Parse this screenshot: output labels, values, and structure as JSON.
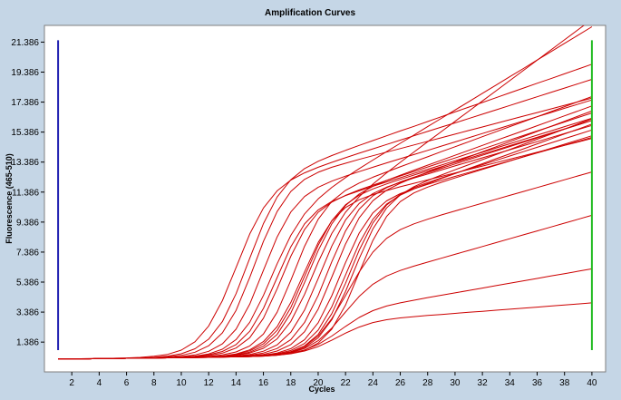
{
  "colors": {
    "background": "#c5d6e6",
    "plot_background": "#ffffff",
    "curve": "#cc0000",
    "left_cursor": "#1f1fb0",
    "right_cursor": "#22bb22"
  },
  "chart_data": {
    "type": "line",
    "title": "Amplification Curves",
    "xlabel": "Cycles",
    "ylabel": "Fluorescence (465-510)",
    "xlim": [
      0,
      41
    ],
    "ylim": [
      -0.6,
      22.5
    ],
    "x_ticks": [
      "2",
      "4",
      "6",
      "8",
      "10",
      "12",
      "14",
      "16",
      "18",
      "20",
      "22",
      "24",
      "26",
      "28",
      "30",
      "32",
      "34",
      "36",
      "38",
      "40"
    ],
    "y_ticks": [
      "1.386",
      "3.386",
      "5.386",
      "7.386",
      "9.386",
      "11.386",
      "13.386",
      "15.386",
      "17.386",
      "19.386",
      "21.386"
    ],
    "grid": false,
    "left_cursor_x": 1,
    "right_cursor_x": 40,
    "x": [
      1,
      2,
      3,
      4,
      5,
      6,
      7,
      8,
      9,
      10,
      11,
      12,
      13,
      14,
      15,
      16,
      17,
      18,
      19,
      20,
      21,
      22,
      23,
      24,
      25,
      26,
      27,
      28,
      29,
      30,
      31,
      32,
      33,
      34,
      35,
      36,
      37,
      38,
      39,
      40
    ],
    "series": [
      {
        "values": [
          0.25,
          0.26,
          0.28,
          0.3,
          0.31,
          0.33,
          0.37,
          0.44,
          0.57,
          0.85,
          1.41,
          2.46,
          4.15,
          6.36,
          8.6,
          10.33,
          11.47,
          12.19,
          12.67,
          13.04,
          13.37,
          13.68,
          13.98,
          14.27,
          14.56,
          14.85,
          15.14,
          15.43,
          15.72,
          16.0,
          16.29,
          16.58,
          16.87,
          17.16,
          17.45,
          17.74,
          18.03,
          18.32,
          18.61,
          18.9
        ]
      },
      {
        "values": [
          0.25,
          0.26,
          0.27,
          0.29,
          0.3,
          0.31,
          0.33,
          0.37,
          0.45,
          0.61,
          0.94,
          1.58,
          2.75,
          4.61,
          6.98,
          9.29,
          11.06,
          12.21,
          12.95,
          13.44,
          13.82,
          14.17,
          14.5,
          14.82,
          15.14,
          15.46,
          15.77,
          16.09,
          16.41,
          16.73,
          17.05,
          17.36,
          17.68,
          18.0,
          18.32,
          18.64,
          18.95,
          19.27,
          19.59,
          19.91
        ]
      },
      {
        "values": [
          0.25,
          0.26,
          0.27,
          0.28,
          0.3,
          0.31,
          0.32,
          0.35,
          0.4,
          0.5,
          0.71,
          1.14,
          2.0,
          3.5,
          5.7,
          8.1,
          10.09,
          11.43,
          12.23,
          12.71,
          13.04,
          13.31,
          13.57,
          13.81,
          14.05,
          14.29,
          14.53,
          14.77,
          15.01,
          15.25,
          15.49,
          15.73,
          15.97,
          16.21,
          16.45,
          16.69,
          16.93,
          17.17,
          17.41,
          17.65
        ]
      },
      {
        "values": [
          0.25,
          0.26,
          0.27,
          0.28,
          0.29,
          0.31,
          0.32,
          0.33,
          0.36,
          0.42,
          0.53,
          0.77,
          1.27,
          2.25,
          3.92,
          6.18,
          8.4,
          10.06,
          11.09,
          11.71,
          12.12,
          12.45,
          12.75,
          13.04,
          13.33,
          13.61,
          13.89,
          14.17,
          14.45,
          14.73,
          15.01,
          15.29,
          15.57,
          15.85,
          16.13,
          16.41,
          16.69,
          16.97,
          17.25,
          17.53
        ]
      },
      {
        "values": [
          0.25,
          0.26,
          0.27,
          0.28,
          0.29,
          0.31,
          0.32,
          0.33,
          0.35,
          0.38,
          0.43,
          0.54,
          0.76,
          1.22,
          2.11,
          3.63,
          5.69,
          7.74,
          9.26,
          10.2,
          10.76,
          11.15,
          11.47,
          11.77,
          12.06,
          12.34,
          12.63,
          12.91,
          13.19,
          13.48,
          13.76,
          14.04,
          14.33,
          14.61,
          14.9,
          15.18,
          15.46,
          15.75,
          16.03,
          16.31
        ]
      },
      {
        "values": [
          0.25,
          0.26,
          0.27,
          0.28,
          0.29,
          0.31,
          0.32,
          0.33,
          0.35,
          0.37,
          0.41,
          0.49,
          0.65,
          0.99,
          1.68,
          2.98,
          4.94,
          7.11,
          8.89,
          10.04,
          10.72,
          11.17,
          11.53,
          11.85,
          12.16,
          12.46,
          12.76,
          13.06,
          13.36,
          13.66,
          13.96,
          14.26,
          14.56,
          14.86,
          15.16,
          15.46,
          15.76,
          16.06,
          16.36,
          16.66
        ]
      },
      {
        "values": [
          0.25,
          0.26,
          0.27,
          0.28,
          0.29,
          0.31,
          0.32,
          0.33,
          0.34,
          0.36,
          0.38,
          0.43,
          0.53,
          0.73,
          1.13,
          1.93,
          3.38,
          5.5,
          7.77,
          9.58,
          10.77,
          11.5,
          11.99,
          12.38,
          12.73,
          13.07,
          13.41,
          13.74,
          14.08,
          14.41,
          14.74,
          15.08,
          15.41,
          15.75,
          16.08,
          16.41,
          16.75,
          17.08,
          17.42,
          17.75
        ]
      },
      {
        "values": [
          0.25,
          0.26,
          0.27,
          0.28,
          0.29,
          0.31,
          0.32,
          0.33,
          0.34,
          0.35,
          0.37,
          0.4,
          0.45,
          0.57,
          0.8,
          1.27,
          2.17,
          3.69,
          5.76,
          7.84,
          9.48,
          10.54,
          11.18,
          11.6,
          11.93,
          12.23,
          12.52,
          12.8,
          13.08,
          13.36,
          13.64,
          13.92,
          14.2,
          14.48,
          14.76,
          15.04,
          15.32,
          15.6,
          15.88,
          16.16
        ]
      },
      {
        "values": [
          0.25,
          0.26,
          0.27,
          0.28,
          0.29,
          0.31,
          0.32,
          0.33,
          0.34,
          0.35,
          0.37,
          0.39,
          0.44,
          0.53,
          0.72,
          1.11,
          1.9,
          3.32,
          5.35,
          7.49,
          9.27,
          10.49,
          11.26,
          11.77,
          12.16,
          12.51,
          12.85,
          13.18,
          13.51,
          13.84,
          14.17,
          14.5,
          14.83,
          15.15,
          15.48,
          15.81,
          16.14,
          16.47,
          16.8,
          17.13
        ]
      },
      {
        "values": [
          0.25,
          0.26,
          0.27,
          0.28,
          0.29,
          0.31,
          0.32,
          0.33,
          0.34,
          0.35,
          0.36,
          0.38,
          0.41,
          0.46,
          0.56,
          0.78,
          1.2,
          2.04,
          3.52,
          5.62,
          7.79,
          9.52,
          10.63,
          11.29,
          11.71,
          12.03,
          12.32,
          12.59,
          12.86,
          13.13,
          13.4,
          13.67,
          13.94,
          14.21,
          14.48,
          14.75,
          15.02,
          15.29,
          15.56,
          15.83
        ]
      },
      {
        "values": [
          0.25,
          0.26,
          0.27,
          0.28,
          0.29,
          0.31,
          0.32,
          0.33,
          0.34,
          0.35,
          0.36,
          0.38,
          0.4,
          0.44,
          0.51,
          0.66,
          0.96,
          1.55,
          2.69,
          4.5,
          6.74,
          8.79,
          10.25,
          11.14,
          11.68,
          12.06,
          12.38,
          12.68,
          12.97,
          13.26,
          13.55,
          13.84,
          14.13,
          14.42,
          14.71,
          15.0,
          15.29,
          15.58,
          15.87,
          16.16
        ]
      },
      {
        "values": [
          0.25,
          0.26,
          0.27,
          0.28,
          0.29,
          0.31,
          0.32,
          0.33,
          0.34,
          0.35,
          0.36,
          0.38,
          0.39,
          0.42,
          0.47,
          0.57,
          0.79,
          1.22,
          2.08,
          3.59,
          5.72,
          7.92,
          9.67,
          10.81,
          11.51,
          11.98,
          12.36,
          12.71,
          13.05,
          13.39,
          13.73,
          14.07,
          14.41,
          14.75,
          15.09,
          15.43,
          15.77,
          16.11,
          16.45,
          16.79
        ]
      },
      {
        "values": [
          0.25,
          0.26,
          0.27,
          0.28,
          0.29,
          0.31,
          0.32,
          0.33,
          0.34,
          0.35,
          0.36,
          0.38,
          0.39,
          0.41,
          0.45,
          0.52,
          0.66,
          0.95,
          1.54,
          2.68,
          4.48,
          6.68,
          8.65,
          10.0,
          10.8,
          11.28,
          11.61,
          11.9,
          12.17,
          12.43,
          12.69,
          12.95,
          13.21,
          13.47,
          13.73,
          13.99,
          14.25,
          14.51,
          14.77,
          15.03
        ]
      },
      {
        "values": [
          0.25,
          0.26,
          0.27,
          0.28,
          0.29,
          0.31,
          0.32,
          0.33,
          0.34,
          0.35,
          0.36,
          0.37,
          0.39,
          0.41,
          0.44,
          0.5,
          0.61,
          0.83,
          1.29,
          2.19,
          3.74,
          5.85,
          7.97,
          9.58,
          10.58,
          11.18,
          11.6,
          11.95,
          12.29,
          12.62,
          12.95,
          13.28,
          13.61,
          13.94,
          14.27,
          14.6,
          14.93,
          15.26,
          15.59,
          15.92
        ]
      },
      {
        "values": [
          0.25,
          0.26,
          0.27,
          0.28,
          0.29,
          0.31,
          0.32,
          0.33,
          0.34,
          0.35,
          0.36,
          0.37,
          0.39,
          0.4,
          0.43,
          0.47,
          0.55,
          0.7,
          1.02,
          1.67,
          2.88,
          4.75,
          6.95,
          8.93,
          10.33,
          11.2,
          11.75,
          12.16,
          12.52,
          12.87,
          13.21,
          13.55,
          13.89,
          14.23,
          14.57,
          14.91,
          15.25,
          15.59,
          15.93,
          16.27
        ]
      },
      {
        "values": [
          0.25,
          0.26,
          0.27,
          0.28,
          0.29,
          0.31,
          0.32,
          0.33,
          0.34,
          0.35,
          0.36,
          0.37,
          0.39,
          0.4,
          0.42,
          0.45,
          0.51,
          0.62,
          0.84,
          1.32,
          2.25,
          3.85,
          6.02,
          8.16,
          9.76,
          10.75,
          11.33,
          11.72,
          12.04,
          12.33,
          12.62,
          12.9,
          13.18,
          13.46,
          13.74,
          14.02,
          14.3,
          14.58,
          14.86,
          15.14
        ]
      },
      {
        "values": [
          0.25,
          0.26,
          0.27,
          0.28,
          0.29,
          0.31,
          0.32,
          0.33,
          0.35,
          0.38,
          0.45,
          0.6,
          0.91,
          1.55,
          2.71,
          4.5,
          6.61,
          8.5,
          9.93,
          10.93,
          11.7,
          12.35,
          12.95,
          13.52,
          14.08,
          14.64,
          15.19,
          15.75,
          16.3,
          16.86,
          17.41,
          17.97,
          18.52,
          19.08,
          19.63,
          20.19,
          20.74,
          21.3,
          21.85,
          22.41
        ]
      },
      {
        "values": [
          0.25,
          0.26,
          0.27,
          0.28,
          0.29,
          0.31,
          0.32,
          0.33,
          0.34,
          0.35,
          0.37,
          0.39,
          0.43,
          0.5,
          0.66,
          0.97,
          1.6,
          2.76,
          4.56,
          6.72,
          8.63,
          10.04,
          11.08,
          11.92,
          12.67,
          13.37,
          14.06,
          14.74,
          15.42,
          16.1,
          16.78,
          17.46,
          18.14,
          18.82,
          19.5,
          20.18,
          20.86,
          21.54,
          22.22,
          22.9
        ]
      },
      {
        "values": [
          0.25,
          0.26,
          0.27,
          0.28,
          0.29,
          0.31,
          0.32,
          0.33,
          0.34,
          0.35,
          0.37,
          0.4,
          0.46,
          0.6,
          0.87,
          1.42,
          2.42,
          4.03,
          6.06,
          8.03,
          9.47,
          10.36,
          10.88,
          11.22,
          11.49,
          11.74,
          11.97,
          12.2,
          12.43,
          12.66,
          12.89,
          13.12,
          13.35,
          13.58,
          13.81,
          14.04,
          14.27,
          14.5,
          14.73,
          14.96
        ]
      },
      {
        "values": [
          0.25,
          0.26,
          0.27,
          0.28,
          0.29,
          0.31,
          0.32,
          0.33,
          0.34,
          0.35,
          0.36,
          0.37,
          0.39,
          0.41,
          0.43,
          0.48,
          0.57,
          0.75,
          1.13,
          1.9,
          3.28,
          5.3,
          7.51,
          9.33,
          10.52,
          11.23,
          11.68,
          12.02,
          12.33,
          12.63,
          12.92,
          13.21,
          13.5,
          13.79,
          14.08,
          14.37,
          14.66,
          14.95,
          15.24,
          15.53
        ]
      },
      {
        "values": [
          0.25,
          0.26,
          0.27,
          0.28,
          0.29,
          0.31,
          0.32,
          0.33,
          0.34,
          0.35,
          0.36,
          0.37,
          0.39,
          0.4,
          0.43,
          0.47,
          0.56,
          0.74,
          1.1,
          1.79,
          2.95,
          4.48,
          6.06,
          7.38,
          8.3,
          8.88,
          9.27,
          9.58,
          9.86,
          10.13,
          10.39,
          10.65,
          10.91,
          11.17,
          11.43,
          11.69,
          11.95,
          12.21,
          12.47,
          12.73
        ]
      },
      {
        "values": [
          0.25,
          0.26,
          0.27,
          0.28,
          0.29,
          0.31,
          0.32,
          0.33,
          0.34,
          0.35,
          0.36,
          0.37,
          0.39,
          0.4,
          0.42,
          0.46,
          0.53,
          0.67,
          0.96,
          1.48,
          2.32,
          3.39,
          4.43,
          5.24,
          5.79,
          6.16,
          6.45,
          6.72,
          6.98,
          7.24,
          7.5,
          7.76,
          8.02,
          8.28,
          8.54,
          8.8,
          9.06,
          9.32,
          9.58,
          9.84
        ]
      },
      {
        "values": [
          0.25,
          0.26,
          0.27,
          0.28,
          0.29,
          0.31,
          0.32,
          0.33,
          0.34,
          0.35,
          0.36,
          0.37,
          0.39,
          0.4,
          0.42,
          0.46,
          0.52,
          0.64,
          0.86,
          1.23,
          1.79,
          2.43,
          3.03,
          3.48,
          3.79,
          4.0,
          4.18,
          4.35,
          4.51,
          4.67,
          4.83,
          4.99,
          5.15,
          5.31,
          5.47,
          5.63,
          5.79,
          5.95,
          6.11,
          6.27
        ]
      },
      {
        "values": [
          0.25,
          0.26,
          0.27,
          0.28,
          0.29,
          0.31,
          0.32,
          0.33,
          0.34,
          0.35,
          0.36,
          0.37,
          0.39,
          0.4,
          0.42,
          0.45,
          0.51,
          0.61,
          0.79,
          1.09,
          1.51,
          1.98,
          2.39,
          2.69,
          2.88,
          3.0,
          3.08,
          3.16,
          3.23,
          3.3,
          3.37,
          3.44,
          3.51,
          3.58,
          3.65,
          3.72,
          3.79,
          3.86,
          3.93,
          4.0
        ]
      }
    ]
  }
}
